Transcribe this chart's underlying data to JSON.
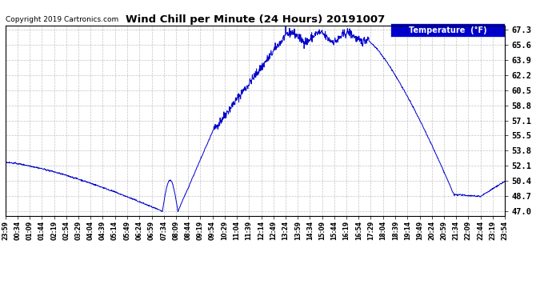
{
  "title": "Wind Chill per Minute (24 Hours) 20191007",
  "copyright": "Copyright 2019 Cartronics.com",
  "legend_label": "Temperature  (°F)",
  "line_color": "#0000cc",
  "background_color": "#ffffff",
  "plot_bg_color": "#ffffff",
  "grid_color": "#aaaaaa",
  "yticks": [
    47.0,
    48.7,
    50.4,
    52.1,
    53.8,
    55.5,
    57.1,
    58.8,
    60.5,
    62.2,
    63.9,
    65.6,
    67.3
  ],
  "ylim": [
    46.5,
    67.8
  ],
  "xtick_labels": [
    "23:59",
    "00:34",
    "01:09",
    "01:44",
    "02:19",
    "02:54",
    "03:29",
    "04:04",
    "04:39",
    "05:14",
    "05:49",
    "06:24",
    "06:59",
    "07:34",
    "08:09",
    "08:44",
    "09:19",
    "09:54",
    "10:29",
    "11:04",
    "11:39",
    "12:14",
    "12:49",
    "13:24",
    "13:59",
    "14:34",
    "15:09",
    "15:44",
    "16:19",
    "16:54",
    "17:29",
    "18:04",
    "18:39",
    "19:14",
    "19:49",
    "20:24",
    "20:59",
    "21:34",
    "22:09",
    "22:44",
    "23:19",
    "23:54"
  ]
}
